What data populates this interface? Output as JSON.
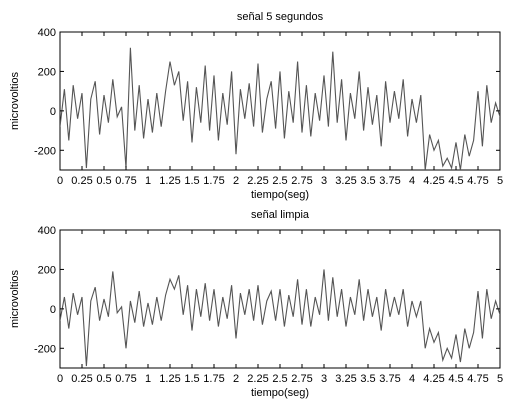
{
  "chart_data": [
    {
      "type": "line",
      "title": "señal 5 segundos",
      "xlabel": "tiempo(seg)",
      "ylabel": "microvoltios",
      "xlim": [
        0,
        5
      ],
      "ylim": [
        -300,
        400
      ],
      "xticks": [
        "0",
        "0.25",
        "0.5",
        "0.75",
        "1",
        "1.25",
        "1.5",
        "1.75",
        "2",
        "2.25",
        "2.5",
        "2.75",
        "3",
        "3.25",
        "3.5",
        "3.75",
        "4",
        "4.25",
        "4.5",
        "4.75",
        "5"
      ],
      "yticks": [
        "-200",
        "0",
        "200",
        "400"
      ],
      "grid": false,
      "color": "#555555",
      "series": [
        {
          "x": [
            0,
            0.05,
            0.1,
            0.15,
            0.2,
            0.25,
            0.3,
            0.35,
            0.4,
            0.45,
            0.5,
            0.55,
            0.6,
            0.65,
            0.7,
            0.75,
            0.8,
            0.85,
            0.9,
            0.95,
            1,
            1.05,
            1.1,
            1.15,
            1.2,
            1.25,
            1.3,
            1.35,
            1.4,
            1.45,
            1.5,
            1.55,
            1.6,
            1.65,
            1.7,
            1.75,
            1.8,
            1.85,
            1.9,
            1.95,
            2,
            2.05,
            2.1,
            2.15,
            2.2,
            2.25,
            2.3,
            2.35,
            2.4,
            2.45,
            2.5,
            2.55,
            2.6,
            2.65,
            2.7,
            2.75,
            2.8,
            2.85,
            2.9,
            2.95,
            3,
            3.05,
            3.1,
            3.15,
            3.2,
            3.25,
            3.3,
            3.35,
            3.4,
            3.45,
            3.5,
            3.55,
            3.6,
            3.65,
            3.7,
            3.75,
            3.8,
            3.85,
            3.9,
            3.95,
            4,
            4.05,
            4.1,
            4.15,
            4.2,
            4.25,
            4.3,
            4.35,
            4.4,
            4.45,
            4.5,
            4.55,
            4.6,
            4.65,
            4.7,
            4.75,
            4.8,
            4.85,
            4.9,
            4.95,
            5
          ],
          "y": [
            -80,
            110,
            -150,
            130,
            -40,
            90,
            -290,
            60,
            150,
            -120,
            80,
            -60,
            160,
            -30,
            20,
            -290,
            320,
            -100,
            130,
            -140,
            60,
            -110,
            90,
            -80,
            100,
            250,
            130,
            200,
            -50,
            150,
            -160,
            120,
            -60,
            230,
            -100,
            180,
            -150,
            90,
            -70,
            200,
            -220,
            110,
            -40,
            140,
            -80,
            240,
            -110,
            60,
            150,
            -90,
            200,
            -140,
            100,
            -60,
            250,
            -110,
            130,
            -130,
            90,
            -50,
            180,
            -80,
            300,
            -60,
            160,
            -150,
            90,
            -40,
            200,
            -100,
            120,
            -70,
            80,
            -180,
            150,
            -60,
            100,
            -40,
            160,
            -130,
            60,
            -60,
            80,
            -300,
            -120,
            -200,
            -150,
            -280,
            -240,
            -290,
            -160,
            -300,
            -120,
            -230,
            -150,
            100,
            -180,
            130,
            -60,
            40,
            -30
          ]
        }
      ]
    },
    {
      "type": "line",
      "title": "señal limpia",
      "xlabel": "tiempo(seg)",
      "ylabel": "microvoltios",
      "xlim": [
        0,
        5
      ],
      "ylim": [
        -300,
        400
      ],
      "xticks": [
        "0",
        "0.25",
        "0.5",
        "0.75",
        "1",
        "1.25",
        "1.5",
        "1.75",
        "2",
        "2.25",
        "2.5",
        "2.75",
        "3",
        "3.25",
        "3.5",
        "3.75",
        "4",
        "4.25",
        "4.5",
        "4.75",
        "5"
      ],
      "yticks": [
        "-200",
        "0",
        "200",
        "400"
      ],
      "grid": false,
      "color": "#555555",
      "series": [
        {
          "x": [
            0,
            0.05,
            0.1,
            0.15,
            0.2,
            0.25,
            0.3,
            0.35,
            0.4,
            0.45,
            0.5,
            0.55,
            0.6,
            0.65,
            0.7,
            0.75,
            0.8,
            0.85,
            0.9,
            0.95,
            1,
            1.05,
            1.1,
            1.15,
            1.2,
            1.25,
            1.3,
            1.35,
            1.4,
            1.45,
            1.5,
            1.55,
            1.6,
            1.65,
            1.7,
            1.75,
            1.8,
            1.85,
            1.9,
            1.95,
            2,
            2.05,
            2.1,
            2.15,
            2.2,
            2.25,
            2.3,
            2.35,
            2.4,
            2.45,
            2.5,
            2.55,
            2.6,
            2.65,
            2.7,
            2.75,
            2.8,
            2.85,
            2.9,
            2.95,
            3,
            3.05,
            3.1,
            3.15,
            3.2,
            3.25,
            3.3,
            3.35,
            3.4,
            3.45,
            3.5,
            3.55,
            3.6,
            3.65,
            3.7,
            3.75,
            3.8,
            3.85,
            3.9,
            3.95,
            4,
            4.05,
            4.1,
            4.15,
            4.2,
            4.25,
            4.3,
            4.35,
            4.4,
            4.45,
            4.5,
            4.55,
            4.6,
            4.65,
            4.7,
            4.75,
            4.8,
            4.85,
            4.9,
            4.95,
            5
          ],
          "y": [
            -60,
            60,
            -100,
            80,
            -30,
            60,
            -290,
            40,
            110,
            -60,
            50,
            -40,
            190,
            -20,
            10,
            -200,
            40,
            -70,
            90,
            -90,
            30,
            -80,
            60,
            -60,
            70,
            150,
            100,
            170,
            -30,
            120,
            -110,
            100,
            -40,
            130,
            -60,
            100,
            -90,
            60,
            -50,
            120,
            -150,
            80,
            -30,
            100,
            -60,
            120,
            -80,
            40,
            90,
            -60,
            100,
            -90,
            70,
            -40,
            150,
            -80,
            100,
            -90,
            60,
            -30,
            200,
            -60,
            160,
            -40,
            100,
            -90,
            60,
            -30,
            150,
            -60,
            100,
            -40,
            60,
            -110,
            100,
            -40,
            60,
            -30,
            100,
            -90,
            40,
            -40,
            40,
            -200,
            -100,
            -170,
            -120,
            -260,
            -200,
            -250,
            -130,
            -270,
            -100,
            -200,
            -120,
            90,
            -150,
            100,
            -50,
            40,
            -30
          ]
        }
      ]
    }
  ]
}
